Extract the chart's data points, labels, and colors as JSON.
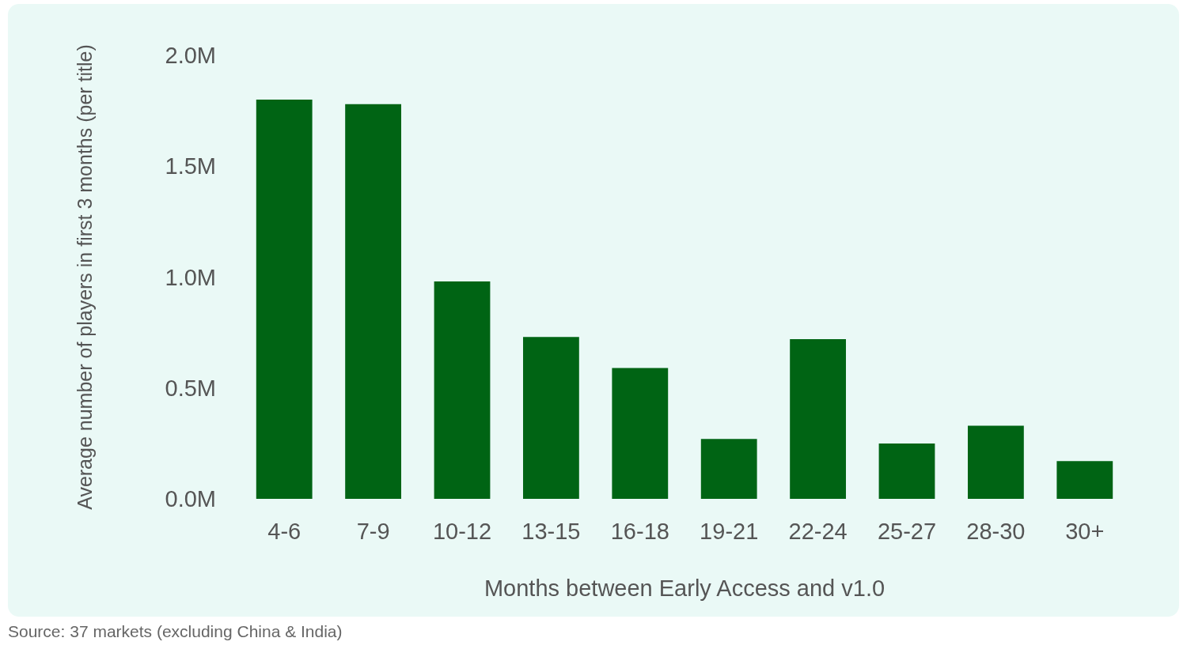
{
  "chart_data": {
    "type": "bar",
    "categories": [
      "4-6",
      "7-9",
      "10-12",
      "13-15",
      "16-18",
      "19-21",
      "22-24",
      "25-27",
      "28-30",
      "30+"
    ],
    "values": [
      1.8,
      1.78,
      0.98,
      0.73,
      0.59,
      0.27,
      0.72,
      0.25,
      0.33,
      0.17
    ],
    "color": "#006414",
    "xlabel": "Months between Early Access and v1.0",
    "ylabel": "Average number of players in first 3 months (per title)",
    "ylim": [
      0,
      2
    ],
    "yticks": [
      {
        "value": 0,
        "label": "0.0M"
      },
      {
        "value": 0.5,
        "label": "0.5M"
      },
      {
        "value": 1,
        "label": "1.0M"
      },
      {
        "value": 1.5,
        "label": "1.5M"
      },
      {
        "value": 2,
        "label": "2.0M"
      }
    ],
    "grid": false,
    "annotations": [
      "Source: 37 markets (excluding China & India)"
    ]
  }
}
